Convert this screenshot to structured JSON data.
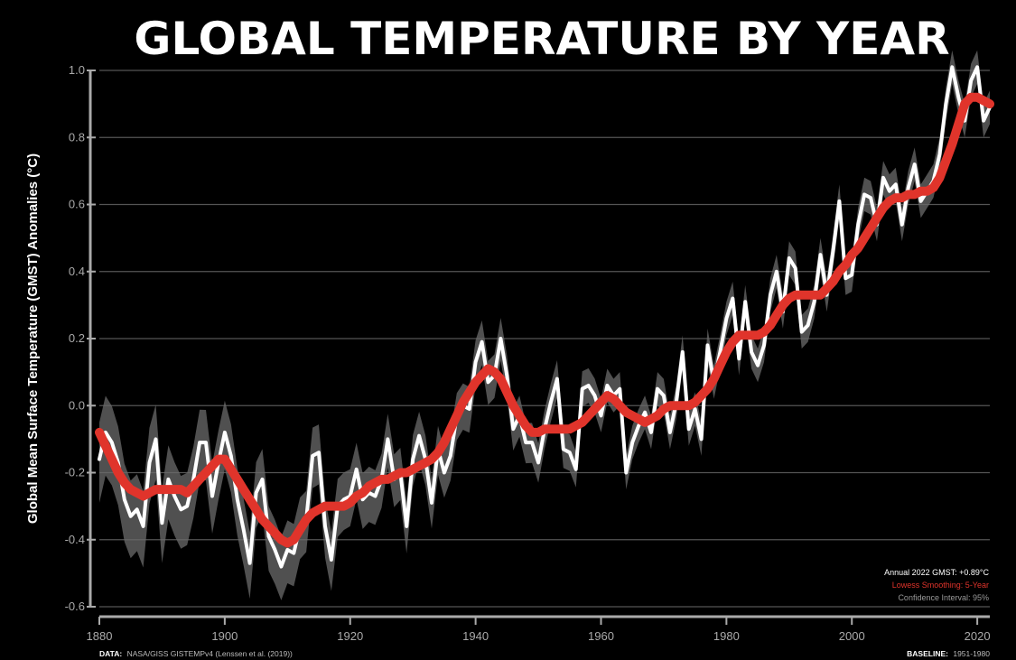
{
  "colors": {
    "background": "#000000",
    "annual_line": "#ffffff",
    "smooth_line": "#e0342b",
    "confidence_band": "#6b6b6b",
    "grid": "#555555",
    "tick_text": "#aaaaaa"
  },
  "chart_data": {
    "type": "line",
    "title": "GLOBAL TEMPERATURE BY YEAR",
    "xlabel": "",
    "ylabel": "Global Mean Surface Temperature (GMST) Anomalies (°C)",
    "xlim": [
      1880,
      2022
    ],
    "ylim": [
      -0.6,
      1.0
    ],
    "grid": true,
    "x_ticks": [
      1880,
      1900,
      1920,
      1940,
      1960,
      1980,
      2000,
      2020
    ],
    "y_ticks": [
      -0.6,
      -0.4,
      -0.2,
      0.0,
      0.2,
      0.4,
      0.6,
      0.8,
      1.0
    ],
    "x_tick_labels": [
      "1880",
      "1900",
      "1920",
      "1940",
      "1960",
      "1980",
      "2000",
      "2020"
    ],
    "y_tick_labels": [
      "-0.6",
      "-0.4",
      "-0.2",
      "0.0",
      "0.2",
      "0.4",
      "0.6",
      "0.8",
      "1.0"
    ],
    "legend_placement": "bottom-right",
    "x_start": 1880,
    "series": [
      {
        "name": "Annual 2022 GMST: +0.89°C",
        "style": "line",
        "values": [
          -0.16,
          -0.08,
          -0.11,
          -0.17,
          -0.28,
          -0.33,
          -0.31,
          -0.36,
          -0.17,
          -0.1,
          -0.35,
          -0.22,
          -0.27,
          -0.31,
          -0.3,
          -0.22,
          -0.11,
          -0.11,
          -0.27,
          -0.17,
          -0.08,
          -0.15,
          -0.28,
          -0.37,
          -0.47,
          -0.26,
          -0.22,
          -0.39,
          -0.43,
          -0.48,
          -0.43,
          -0.44,
          -0.36,
          -0.34,
          -0.15,
          -0.14,
          -0.36,
          -0.46,
          -0.3,
          -0.28,
          -0.27,
          -0.19,
          -0.28,
          -0.26,
          -0.27,
          -0.22,
          -0.1,
          -0.22,
          -0.2,
          -0.36,
          -0.16,
          -0.09,
          -0.16,
          -0.29,
          -0.13,
          -0.2,
          -0.15,
          -0.03,
          0.0,
          -0.01,
          0.13,
          0.19,
          0.07,
          0.09,
          0.2,
          0.09,
          -0.07,
          -0.03,
          -0.11,
          -0.11,
          -0.17,
          -0.07,
          0.01,
          0.08,
          -0.13,
          -0.14,
          -0.19,
          0.05,
          0.06,
          0.03,
          -0.03,
          0.06,
          0.03,
          0.05,
          -0.2,
          -0.11,
          -0.06,
          -0.02,
          -0.08,
          0.05,
          0.03,
          -0.08,
          0.01,
          0.16,
          -0.07,
          -0.01,
          -0.1,
          0.18,
          0.07,
          0.16,
          0.26,
          0.32,
          0.14,
          0.31,
          0.16,
          0.12,
          0.18,
          0.33,
          0.4,
          0.28,
          0.44,
          0.41,
          0.22,
          0.24,
          0.31,
          0.45,
          0.33,
          0.46,
          0.61,
          0.38,
          0.39,
          0.54,
          0.63,
          0.62,
          0.54,
          0.68,
          0.64,
          0.66,
          0.54,
          0.65,
          0.72,
          0.61,
          0.64,
          0.67,
          0.75,
          0.9,
          1.01,
          0.92,
          0.85,
          0.97,
          1.01,
          0.85,
          0.89
        ]
      },
      {
        "name": "Lowess Smoothing: 5-Year",
        "style": "smooth",
        "values": [
          -0.08,
          -0.12,
          -0.16,
          -0.2,
          -0.23,
          -0.25,
          -0.26,
          -0.27,
          -0.26,
          -0.25,
          -0.25,
          -0.25,
          -0.25,
          -0.25,
          -0.26,
          -0.24,
          -0.22,
          -0.2,
          -0.18,
          -0.16,
          -0.16,
          -0.19,
          -0.22,
          -0.25,
          -0.28,
          -0.31,
          -0.34,
          -0.36,
          -0.38,
          -0.4,
          -0.41,
          -0.4,
          -0.37,
          -0.34,
          -0.32,
          -0.31,
          -0.3,
          -0.3,
          -0.3,
          -0.3,
          -0.29,
          -0.27,
          -0.26,
          -0.24,
          -0.23,
          -0.22,
          -0.22,
          -0.21,
          -0.2,
          -0.2,
          -0.19,
          -0.18,
          -0.17,
          -0.16,
          -0.14,
          -0.11,
          -0.07,
          -0.03,
          0.01,
          0.04,
          0.07,
          0.09,
          0.11,
          0.1,
          0.08,
          0.04,
          0.0,
          -0.03,
          -0.06,
          -0.08,
          -0.08,
          -0.07,
          -0.07,
          -0.07,
          -0.07,
          -0.07,
          -0.06,
          -0.05,
          -0.03,
          -0.01,
          0.01,
          0.03,
          0.02,
          0.0,
          -0.02,
          -0.03,
          -0.04,
          -0.05,
          -0.04,
          -0.03,
          -0.01,
          0.0,
          0.0,
          0.0,
          0.0,
          0.01,
          0.03,
          0.05,
          0.08,
          0.12,
          0.16,
          0.19,
          0.21,
          0.21,
          0.21,
          0.21,
          0.22,
          0.24,
          0.27,
          0.3,
          0.32,
          0.33,
          0.33,
          0.33,
          0.33,
          0.33,
          0.35,
          0.37,
          0.4,
          0.42,
          0.45,
          0.47,
          0.5,
          0.53,
          0.56,
          0.59,
          0.61,
          0.62,
          0.62,
          0.63,
          0.63,
          0.64,
          0.64,
          0.65,
          0.68,
          0.73,
          0.78,
          0.84,
          0.9,
          0.92,
          0.92,
          0.91,
          0.9
        ]
      }
    ],
    "confidence_interval": "95%"
  },
  "legend": {
    "annual": "Annual 2022 GMST: +0.89°C",
    "smoothing": "Lowess Smoothing: 5-Year",
    "confidence": "Confidence Interval: 95%"
  },
  "footer": {
    "data_label": "DATA:",
    "data_text": "NASA/GISS GISTEMPv4 (Lenssen et al. (2019))",
    "baseline_label": "BASELINE:",
    "baseline_text": "1951-1980"
  }
}
